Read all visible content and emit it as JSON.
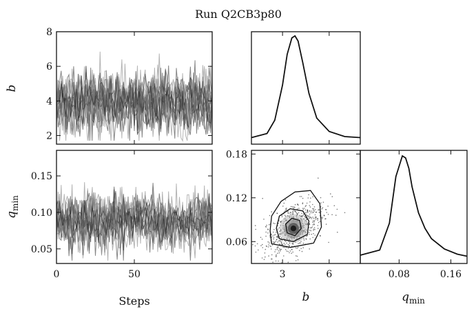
{
  "chart_data": [
    {
      "type": "line",
      "title": "Run Q2CB3p80",
      "panel": "trace-b",
      "ylabel": "b",
      "ylim": [
        1.5,
        8
      ],
      "yticks": [
        "2",
        "4",
        "6",
        "8"
      ],
      "xlim": [
        0,
        100
      ],
      "n_walkers": 16,
      "mean": 3.9,
      "sd": 0.9,
      "grid": false
    },
    {
      "type": "line",
      "panel": "trace-qmin",
      "ylabel": "q",
      "ylabel_sub": "min",
      "xlabel": "Steps",
      "xlim": [
        0,
        100
      ],
      "xticks": [
        "0",
        "50"
      ],
      "ylim": [
        0.03,
        0.185
      ],
      "yticks": [
        "0.05",
        "0.10",
        "0.15"
      ],
      "n_walkers": 16,
      "mean": 0.088,
      "sd": 0.018,
      "grid": false
    },
    {
      "type": "line",
      "panel": "marginal-b",
      "x": [
        1,
        2,
        2.5,
        3,
        3.3,
        3.6,
        3.8,
        4.0,
        4.3,
        4.7,
        5.2,
        6,
        7,
        8
      ],
      "y": [
        0.01,
        0.05,
        0.18,
        0.52,
        0.82,
        0.98,
        1.0,
        0.95,
        0.74,
        0.44,
        0.2,
        0.07,
        0.02,
        0.01
      ],
      "xlim": [
        1,
        8
      ],
      "grid": false
    },
    {
      "type": "scatter",
      "panel": "joint",
      "xlabel": "b",
      "ylabel": "",
      "xlim": [
        1,
        8
      ],
      "ylim": [
        0.03,
        0.185
      ],
      "xticks": [
        "3",
        "6"
      ],
      "yticks": [
        "0.06",
        "0.12",
        "0.18"
      ],
      "center": [
        3.7,
        0.078
      ],
      "contours": [
        {
          "level": "inner",
          "x": [
            3.3,
            3.8,
            4.2,
            4.1,
            3.6,
            3.2,
            3.3
          ],
          "y": [
            0.072,
            0.068,
            0.078,
            0.089,
            0.092,
            0.084,
            0.072
          ]
        },
        {
          "level": "middle",
          "x": [
            2.8,
            3.7,
            4.6,
            4.7,
            4.3,
            3.5,
            2.8,
            2.6,
            2.8
          ],
          "y": [
            0.064,
            0.06,
            0.07,
            0.088,
            0.102,
            0.105,
            0.095,
            0.078,
            0.064
          ]
        },
        {
          "level": "outer",
          "x": [
            2.3,
            3.5,
            5.0,
            5.5,
            5.4,
            4.8,
            3.8,
            2.9,
            2.3,
            2.2,
            2.3
          ],
          "y": [
            0.057,
            0.052,
            0.058,
            0.08,
            0.112,
            0.13,
            0.128,
            0.115,
            0.095,
            0.075,
            0.057
          ]
        }
      ],
      "grid": false
    },
    {
      "type": "line",
      "panel": "marginal-qmin",
      "xlabel": "q",
      "xlabel_sub": "min",
      "x": [
        0.02,
        0.05,
        0.065,
        0.075,
        0.085,
        0.09,
        0.095,
        0.1,
        0.11,
        0.12,
        0.13,
        0.15,
        0.17,
        0.185
      ],
      "y": [
        0.04,
        0.09,
        0.35,
        0.8,
        1.0,
        0.98,
        0.88,
        0.7,
        0.45,
        0.3,
        0.2,
        0.1,
        0.05,
        0.03
      ],
      "xlim": [
        0.02,
        0.185
      ],
      "xticks": [
        "0.08",
        "0.16"
      ],
      "grid": false
    }
  ],
  "colors": {
    "walker_gray": "#777777",
    "walker_dark": "#222222",
    "curve": "#111111",
    "contour": "#111111",
    "scatter": "#222222",
    "density_dark": "#111111"
  }
}
